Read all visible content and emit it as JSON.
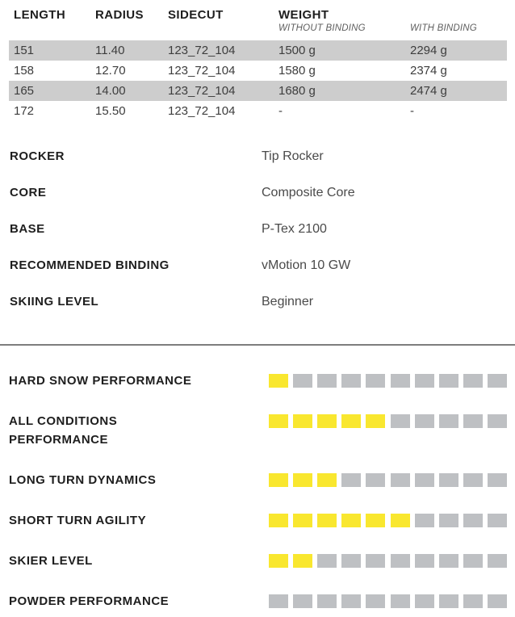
{
  "table": {
    "headers": {
      "length": "LENGTH",
      "radius": "RADIUS",
      "sidecut": "SIDECUT",
      "weight": "WEIGHT",
      "weight_sub_without": "WITHOUT BINDING",
      "weight_sub_with": "WITH BINDING"
    },
    "rows": [
      {
        "length": "151",
        "radius": "11.40",
        "sidecut": "123_72_104",
        "weight_without": "1500 g",
        "weight_with": "2294 g"
      },
      {
        "length": "158",
        "radius": "12.70",
        "sidecut": "123_72_104",
        "weight_without": "1580 g",
        "weight_with": "2374 g"
      },
      {
        "length": "165",
        "radius": "14.00",
        "sidecut": "123_72_104",
        "weight_without": "1680 g",
        "weight_with": "2474 g"
      },
      {
        "length": "172",
        "radius": "15.50",
        "sidecut": "123_72_104",
        "weight_without": "-",
        "weight_with": "-"
      }
    ]
  },
  "specs": [
    {
      "label": "ROCKER",
      "value": "Tip Rocker"
    },
    {
      "label": "CORE",
      "value": "Composite Core"
    },
    {
      "label": "BASE",
      "value": "P-Tex 2100"
    },
    {
      "label": "RECOMMENDED BINDING",
      "value": "vMotion 10 GW"
    },
    {
      "label": "SKIING LEVEL",
      "value": "Beginner"
    }
  ],
  "ratings": {
    "segments_total": 10,
    "items": [
      {
        "label": "HARD SNOW PERFORMANCE",
        "value": 1
      },
      {
        "label": "ALL CONDITIONS PERFORMANCE",
        "value": 5
      },
      {
        "label": "LONG TURN DYNAMICS",
        "value": 3
      },
      {
        "label": "SHORT TURN AGILITY",
        "value": 6
      },
      {
        "label": "SKIER LEVEL",
        "value": 2
      },
      {
        "label": "POWDER PERFORMANCE",
        "value": 0
      }
    ]
  },
  "colors": {
    "rating_active": "#F9E72F",
    "rating_inactive": "#BEC0C3",
    "row_stripe": "#CDCDCD",
    "divider": "#7D7D7D"
  }
}
